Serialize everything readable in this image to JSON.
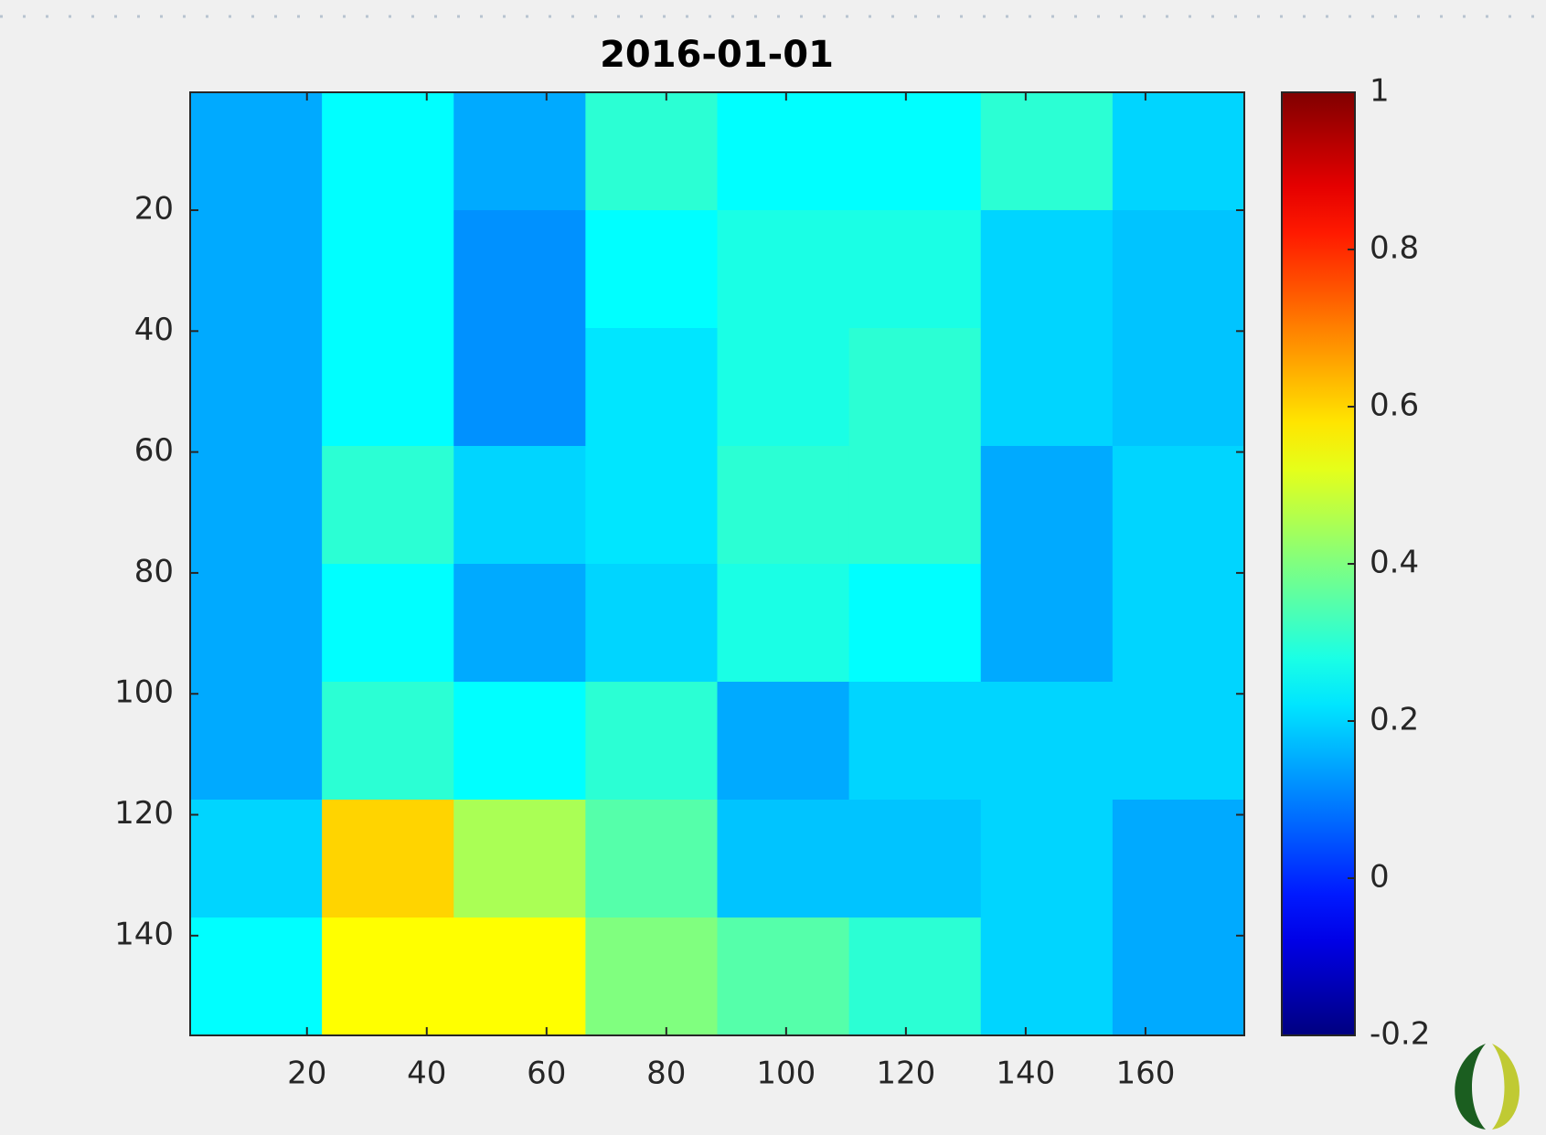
{
  "chart_data": {
    "type": "heatmap",
    "title": "2016-01-01",
    "colormap": "jet",
    "z": [
      [
        0.15,
        0.25,
        0.15,
        0.3,
        0.25,
        0.25,
        0.3,
        0.2
      ],
      [
        0.15,
        0.25,
        0.12,
        0.25,
        0.28,
        0.28,
        0.2,
        0.18
      ],
      [
        0.15,
        0.25,
        0.12,
        0.22,
        0.28,
        0.3,
        0.2,
        0.18
      ],
      [
        0.15,
        0.3,
        0.2,
        0.22,
        0.3,
        0.3,
        0.15,
        0.2
      ],
      [
        0.15,
        0.25,
        0.15,
        0.2,
        0.28,
        0.25,
        0.15,
        0.2
      ],
      [
        0.15,
        0.3,
        0.25,
        0.3,
        0.15,
        0.2,
        0.2,
        0.2
      ],
      [
        0.2,
        0.6,
        0.45,
        0.35,
        0.18,
        0.18,
        0.2,
        0.15
      ],
      [
        0.25,
        0.55,
        0.55,
        0.4,
        0.35,
        0.3,
        0.2,
        0.15
      ]
    ],
    "xlim": [
      0.5,
      176.5
    ],
    "xticks": [
      20,
      40,
      60,
      80,
      100,
      120,
      140,
      160
    ],
    "ylim": [
      0.5,
      156.5
    ],
    "yticks": [
      20,
      40,
      60,
      80,
      100,
      120,
      140
    ],
    "clim": [
      -0.2,
      1
    ],
    "cticks": [
      -0.2,
      0,
      0.2,
      0.4,
      0.6,
      0.8,
      1
    ]
  }
}
